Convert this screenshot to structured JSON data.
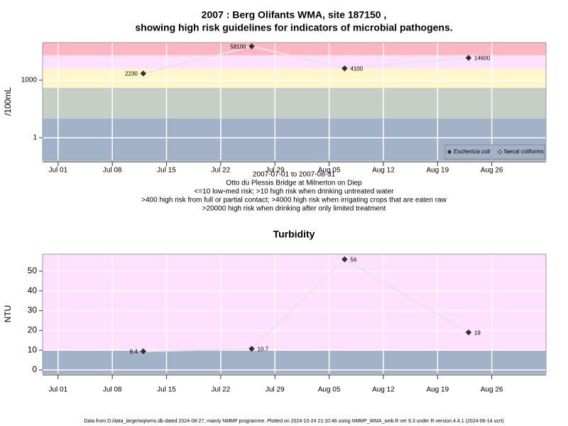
{
  "chart_data": [
    {
      "type": "line",
      "title": "2007 : Berg Olifants WMA, site 187150 ,",
      "subtitle": "showing high risk guidelines for indicators of microbial pathogens.",
      "notes": [
        "2007-07-01 to 2007-08-31",
        "Otto du Plessis Bridge at Milnerton on Diep",
        "<=10 low-med risk; >10 high risk when drinking untreated water",
        ">400 high risk from full or partial contact; >4000 high risk when irrigating crops that are eaten raw",
        ">20000 high risk when drinking after only limited treatment"
      ],
      "y_label": "/100mL",
      "log_y": true,
      "x": [
        "2007-07-12",
        "2007-07-26",
        "2007-08-07",
        "2007-08-23"
      ],
      "series": [
        {
          "name": "Eschericia coli",
          "color": "#303030",
          "values": [
            2230,
            58100,
            4100,
            14600
          ]
        },
        {
          "name": "faecal coliforms",
          "color": "#ffffff",
          "values": [
            null,
            null,
            null,
            null
          ]
        }
      ],
      "line_color": "#e6e6e6",
      "xlim": [
        "2007-06-29",
        "2007-09-02"
      ],
      "xticks": [
        {
          "value": "2007-07-01",
          "label": "Jul 01"
        },
        {
          "value": "2007-07-08",
          "label": "Jul 08"
        },
        {
          "value": "2007-07-15",
          "label": "Jul 15"
        },
        {
          "value": "2007-07-22",
          "label": "Jul 22"
        },
        {
          "value": "2007-07-29",
          "label": "Jul 29"
        },
        {
          "value": "2007-08-05",
          "label": "Aug 05"
        },
        {
          "value": "2007-08-12",
          "label": "Aug 12"
        },
        {
          "value": "2007-08-19",
          "label": "Aug 19"
        },
        {
          "value": "2007-08-26",
          "label": "Aug 26"
        }
      ],
      "ylim": [
        0.065,
        91000
      ],
      "yticks": [
        1,
        1000
      ],
      "grid": true,
      "legend": "bottom-right",
      "bands": {
        "thresholds": [
          10,
          400,
          4000,
          20000
        ],
        "colors": [
          "#a2b2c9",
          "#c5cfc5",
          "#fff7c9",
          "#ffe0ff",
          "#ffb6c1"
        ]
      }
    },
    {
      "type": "line",
      "title": "Turbidity",
      "y_label": "NTU",
      "log_y": false,
      "x": [
        "2007-07-12",
        "2007-07-26",
        "2007-08-07",
        "2007-08-23"
      ],
      "series": [
        {
          "name": "Turbidity",
          "color": "#303030",
          "values": [
            9.4,
            10.7,
            56,
            19
          ]
        }
      ],
      "line_color": "#e6e6e6",
      "xlim": [
        "2007-06-29",
        "2007-09-02"
      ],
      "xticks": [
        {
          "value": "2007-07-01",
          "label": "Jul 01"
        },
        {
          "value": "2007-07-08",
          "label": "Jul 08"
        },
        {
          "value": "2007-07-15",
          "label": "Jul 15"
        },
        {
          "value": "2007-07-22",
          "label": "Jul 22"
        },
        {
          "value": "2007-07-29",
          "label": "Jul 29"
        },
        {
          "value": "2007-08-05",
          "label": "Aug 05"
        },
        {
          "value": "2007-08-12",
          "label": "Aug 12"
        },
        {
          "value": "2007-08-19",
          "label": "Aug 19"
        },
        {
          "value": "2007-08-26",
          "label": "Aug 26"
        }
      ],
      "ylim": [
        -1.8,
        58.6
      ],
      "yticks": [
        0,
        10,
        20,
        30,
        40,
        50
      ],
      "grid": true,
      "bands": {
        "thresholds": [
          10
        ],
        "colors": [
          "#a2b2c9",
          "#ffe0ff"
        ]
      }
    }
  ],
  "footer": "Data from D:/data_large/wq/wms.db dated 2024-08-27, mainly NMMP programme. Plotted on 2024-10-24 21:10:46 using NMMP_WMA_web.R ver 9.3 under R version 4.4.1 (2024-06-14 ucrt)"
}
